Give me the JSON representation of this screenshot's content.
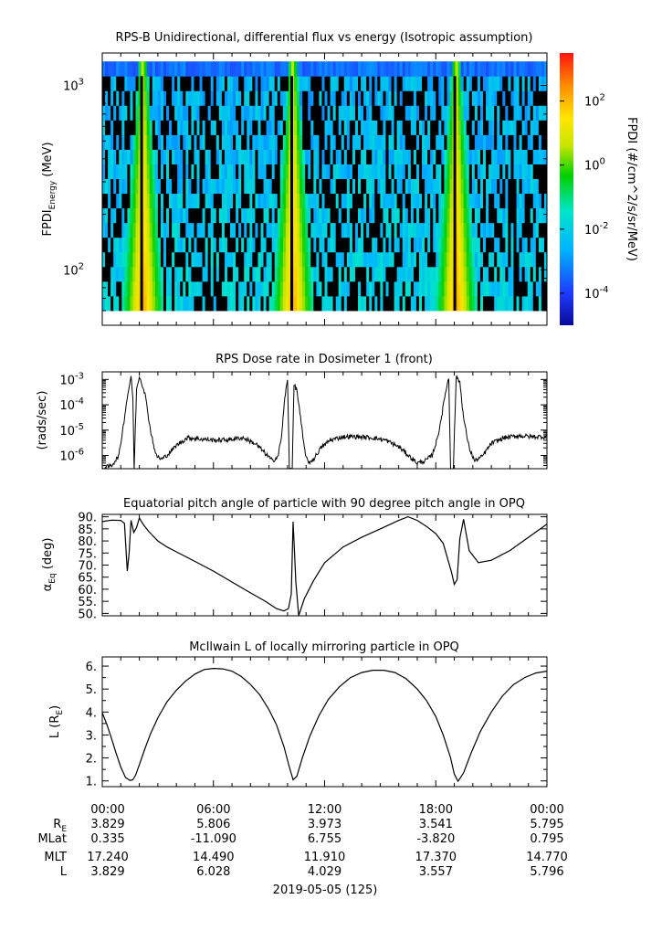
{
  "chart_data": [
    {
      "type": "heatmap",
      "title": "RPS-B  Unidirectional, differential flux vs energy (Isotropic assumption)",
      "ylabel": "FPDI",
      "ylabel_sub": "Energy",
      "ylabel_unit": " (MeV)",
      "yscale": "log",
      "ylim": [
        50,
        1500
      ],
      "yticks": [
        {
          "value": 100,
          "base": "10",
          "exp": "2"
        },
        {
          "value": 1000,
          "base": "10",
          "exp": "3"
        }
      ],
      "energy_channel_range": [
        60,
        1350
      ],
      "colorbar_label": "FPDI (#/cm^2/s/sr/MeV)",
      "colorbar_range_log": [
        -5,
        3.5
      ],
      "colorbar_ticks": [
        {
          "value": 2,
          "base": "10",
          "exp": "2"
        },
        {
          "value": 0,
          "base": "10",
          "exp": "0"
        },
        {
          "value": -2,
          "base": "10",
          "exp": "-2"
        },
        {
          "value": -4,
          "base": "10",
          "exp": "-4"
        }
      ],
      "perigee_hours": [
        2.2,
        10.3,
        19.1
      ]
    },
    {
      "type": "line",
      "title": "RPS  Dose rate in Dosimeter 1 (front)",
      "ylabel": "(rads/sec)",
      "yscale": "log",
      "ylim": [
        3e-07,
        0.002
      ],
      "yticks": [
        {
          "value": 1e-06,
          "base": "10",
          "exp": "-6"
        },
        {
          "value": 1e-05,
          "base": "10",
          "exp": "-5"
        },
        {
          "value": 0.0001,
          "base": "10",
          "exp": "-4"
        },
        {
          "value": 0.001,
          "base": "10",
          "exp": "-3"
        }
      ],
      "x_hours": [
        0,
        0.5,
        0.9,
        1.1,
        1.35,
        1.55,
        1.65,
        1.72,
        1.85,
        2.0,
        2.3,
        2.6,
        2.9,
        3.2,
        3.6,
        4.0,
        4.6,
        5.3,
        6.0,
        6.8,
        7.6,
        8.3,
        8.8,
        9.2,
        9.5,
        9.7,
        9.85,
        10.0,
        10.1,
        10.25,
        10.35,
        10.5,
        10.7,
        10.9,
        11.1,
        11.4,
        11.8,
        12.3,
        13.0,
        13.8,
        14.6,
        15.3,
        16.0,
        16.6,
        17.0,
        17.4,
        17.8,
        18.1,
        18.35,
        18.55,
        18.7,
        18.8,
        18.95,
        19.1,
        19.3,
        19.5,
        19.8,
        20.1,
        20.5,
        21.0,
        21.7,
        22.5,
        23.2,
        24.0
      ],
      "values": [
        3e-07,
        4e-07,
        1e-06,
        1e-05,
        0.0002,
        0.0013,
        0.0002,
        3e-07,
        0.0004,
        0.0014,
        0.0003,
        1e-05,
        1e-06,
        7e-07,
        1.2e-06,
        2.5e-06,
        5e-06,
        4.5e-06,
        4e-06,
        4.2e-06,
        5e-06,
        2.8e-06,
        1.2e-06,
        6e-07,
        1e-06,
        8e-06,
        0.0002,
        0.0009,
        3e-07,
        3e-07,
        0.0006,
        0.0004,
        3e-05,
        2e-06,
        5e-07,
        7e-07,
        2e-06,
        4e-06,
        5.5e-06,
        5.5e-06,
        5e-06,
        4e-06,
        2.2e-06,
        9e-07,
        5e-07,
        6e-07,
        1e-06,
        5e-06,
        5e-05,
        0.0004,
        0.0011,
        3e-07,
        3e-07,
        0.0013,
        0.0008,
        3e-05,
        2e-06,
        6e-07,
        9e-07,
        3e-06,
        5e-06,
        6e-06,
        5.5e-06,
        5.5e-06
      ]
    },
    {
      "type": "line",
      "title": "Equatorial pitch angle of particle with 90 degree pitch angle in OPQ",
      "ylabel": "α",
      "ylabel_sub": "Eq",
      "ylabel_unit": " (deg)",
      "ylim": [
        49,
        91
      ],
      "yticks": [
        50,
        55,
        60,
        65,
        70,
        75,
        80,
        85,
        90
      ],
      "ytick_labels": [
        "50.",
        "55.",
        "60.",
        "65.",
        "70.",
        "75.",
        "80.",
        "85.",
        "90."
      ],
      "x_hours": [
        0,
        0.5,
        1.0,
        1.2,
        1.35,
        1.45,
        1.55,
        1.7,
        1.85,
        2.0,
        2.2,
        2.5,
        3.0,
        3.5,
        4.0,
        5.0,
        6.0,
        7.0,
        8.0,
        8.8,
        9.4,
        9.8,
        10.05,
        10.2,
        10.3,
        10.45,
        10.6,
        10.9,
        11.4,
        12.0,
        13.0,
        14.0,
        15.0,
        16.0,
        16.5,
        17.0,
        17.5,
        18.0,
        18.4,
        18.7,
        18.85,
        19.0,
        19.15,
        19.3,
        19.5,
        19.8,
        20.3,
        21.0,
        22.0,
        23.0,
        24.0
      ],
      "values": [
        88,
        88.6,
        88.5,
        87.3,
        67.5,
        75,
        88.5,
        83.5,
        85.5,
        89.5,
        87,
        84,
        80,
        77.5,
        75.5,
        71.5,
        67.5,
        63,
        58.5,
        55,
        52,
        51,
        52,
        58,
        88,
        63,
        49,
        56,
        63.5,
        71,
        77.5,
        81.5,
        85,
        88.5,
        90,
        88.5,
        86,
        83,
        79,
        71,
        67,
        62,
        64,
        81,
        89,
        76,
        71,
        72,
        76,
        81.5,
        87
      ]
    },
    {
      "type": "line",
      "title": "McIlwain L of locally mirroring particle in OPQ",
      "ylabel": "L (R",
      "ylabel_sub": "E",
      "ylabel_unit": ")",
      "ylim": [
        0.75,
        6.4
      ],
      "yticks": [
        1,
        1.5,
        2,
        2.5,
        3,
        3.5,
        4,
        4.5,
        5,
        5.5,
        6
      ],
      "ytick_labels": [
        "1.",
        "",
        "2.",
        "",
        "3.",
        "",
        "4.",
        "",
        "5.",
        "",
        "6."
      ],
      "x_hours": [
        0,
        0.25,
        0.5,
        0.75,
        1.0,
        1.25,
        1.5,
        1.65,
        1.8,
        2.0,
        2.3,
        2.6,
        3.0,
        3.5,
        4.0,
        4.5,
        5.0,
        5.5,
        6.0,
        6.5,
        7.0,
        7.5,
        8.0,
        8.5,
        9.0,
        9.4,
        9.8,
        10.1,
        10.3,
        10.5,
        10.8,
        11.2,
        11.7,
        12.2,
        12.8,
        13.4,
        14.0,
        14.6,
        15.2,
        15.8,
        16.4,
        17.0,
        17.5,
        18.0,
        18.4,
        18.8,
        19.0,
        19.2,
        19.5,
        19.9,
        20.4,
        21.0,
        21.6,
        22.2,
        22.8,
        23.4,
        24.0
      ],
      "values": [
        3.97,
        3.45,
        2.85,
        2.2,
        1.6,
        1.15,
        1.02,
        1.05,
        1.25,
        1.7,
        2.4,
        3.05,
        3.75,
        4.45,
        4.95,
        5.35,
        5.65,
        5.85,
        5.9,
        5.88,
        5.78,
        5.55,
        5.2,
        4.75,
        4.1,
        3.45,
        2.5,
        1.6,
        1.05,
        1.2,
        2.0,
        2.95,
        3.85,
        4.55,
        5.1,
        5.5,
        5.72,
        5.82,
        5.82,
        5.72,
        5.45,
        5.0,
        4.5,
        3.8,
        3.0,
        2.0,
        1.3,
        0.98,
        1.35,
        2.2,
        3.15,
        4.0,
        4.7,
        5.2,
        5.5,
        5.7,
        5.78
      ]
    }
  ],
  "x_axis": {
    "range_hours": [
      0,
      24
    ],
    "row_labels": [
      "",
      "R",
      "MLat",
      "MLT",
      "L"
    ],
    "row_label_subs": [
      "",
      "E",
      "",
      "",
      ""
    ],
    "columns": [
      {
        "hours": 0,
        "values": [
          "00:00",
          "3.829",
          "0.335",
          "17.240",
          "3.829"
        ]
      },
      {
        "hours": 6,
        "values": [
          "06:00",
          "5.806",
          "-11.090",
          "14.490",
          "6.028"
        ]
      },
      {
        "hours": 12,
        "values": [
          "12:00",
          "3.973",
          "6.755",
          "11.910",
          "4.029"
        ]
      },
      {
        "hours": 18,
        "values": [
          "18:00",
          "3.541",
          "-3.820",
          "17.370",
          "3.557"
        ]
      },
      {
        "hours": 24,
        "values": [
          "00:00",
          "5.795",
          "0.795",
          "14.770",
          "5.796"
        ]
      }
    ],
    "date_label": "2019-05-05 (125)"
  }
}
